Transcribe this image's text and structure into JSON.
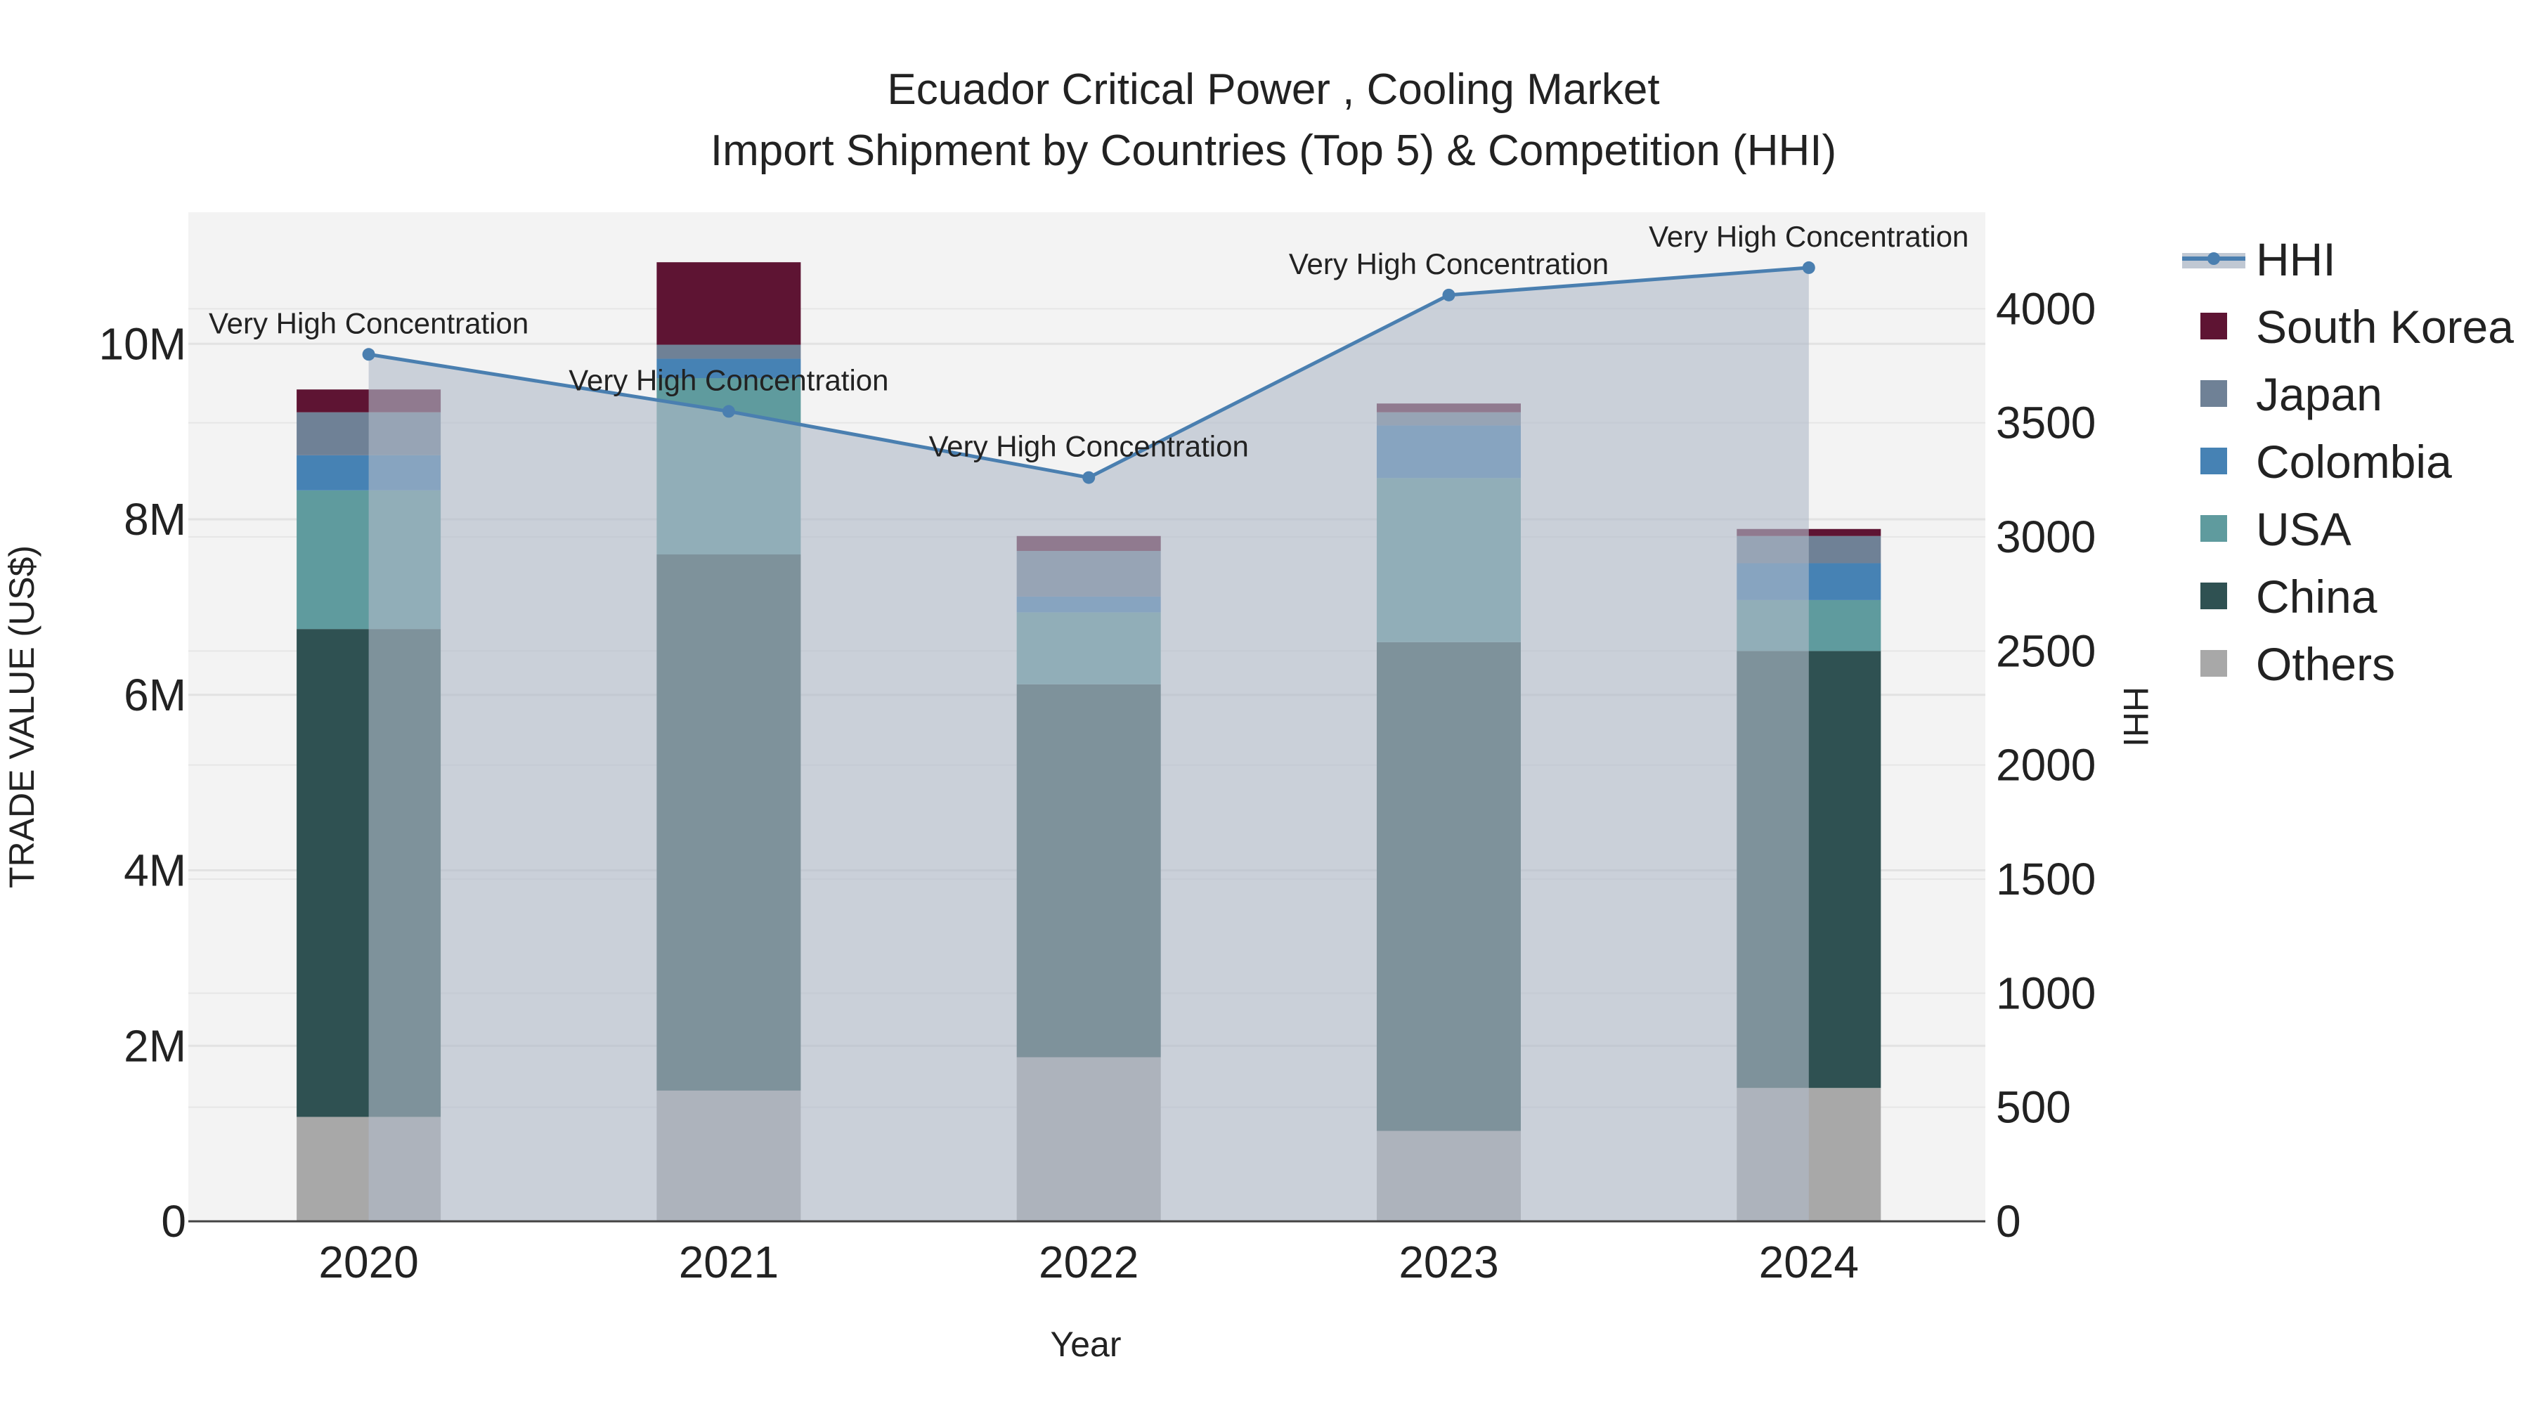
{
  "chart_data": {
    "type": "bar",
    "barmode": "stack",
    "title": "Ecuador Critical Power , Cooling Market",
    "subtitle": "Import Shipment by Countries (Top 5) & Competition (HHI)",
    "xlabel": "Year",
    "ylabel": "TRADE VALUE (US$)",
    "y2label": "HHI",
    "categories": [
      "2020",
      "2021",
      "2022",
      "2023",
      "2024"
    ],
    "ylim": [
      0,
      11500000
    ],
    "y2lim": [
      0,
      4423
    ],
    "y_ticks": [
      0,
      2000000,
      4000000,
      6000000,
      8000000,
      10000000
    ],
    "y_tick_labels": [
      "0",
      "2M",
      "4M",
      "6M",
      "8M",
      "10M"
    ],
    "y2_ticks": [
      0,
      500,
      1000,
      1500,
      2000,
      2500,
      3000,
      3500,
      4000
    ],
    "y2_tick_labels": [
      "0",
      "500",
      "1000",
      "1500",
      "2000",
      "2500",
      "3000",
      "3500",
      "4000"
    ],
    "series": [
      {
        "name": "Others",
        "color": "#a8a8a8",
        "values": [
          1190000,
          1490000,
          1870000,
          1030000,
          1520000
        ]
      },
      {
        "name": "China",
        "color": "#2f5152",
        "values": [
          5560000,
          6110000,
          4250000,
          5570000,
          4980000
        ]
      },
      {
        "name": "USA",
        "color": "#5f9b9e",
        "values": [
          1580000,
          2010000,
          820000,
          1870000,
          580000
        ]
      },
      {
        "name": "Colombia",
        "color": "#4682b4",
        "values": [
          400000,
          220000,
          180000,
          600000,
          420000
        ]
      },
      {
        "name": "Japan",
        "color": "#6f8196",
        "values": [
          490000,
          160000,
          520000,
          150000,
          310000
        ]
      },
      {
        "name": "South Korea",
        "color": "#5e1433",
        "values": [
          260000,
          940000,
          170000,
          100000,
          80000
        ]
      }
    ],
    "hhi": {
      "name": "HHI",
      "color": "#4a7fb0",
      "values": [
        3800,
        3550,
        3260,
        4060,
        4180
      ],
      "labels": [
        "Very High Concentration",
        "Very High Concentration",
        "Very High Concentration",
        "Very High Concentration",
        "Very High Concentration"
      ]
    },
    "legend": [
      "HHI",
      "South Korea",
      "Japan",
      "Colombia",
      "USA",
      "China",
      "Others"
    ],
    "legend_position": "right",
    "grid": true
  }
}
